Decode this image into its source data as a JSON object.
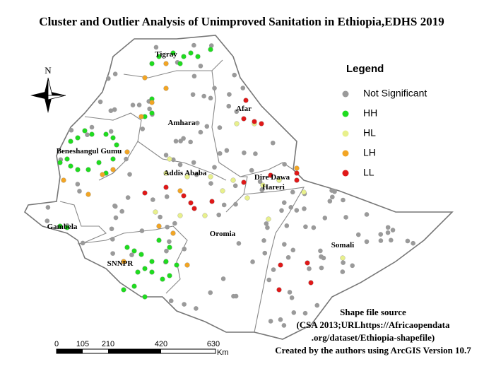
{
  "title": "Cluster and Outlier Analysis of  Unimproved Sanitation in Ethiopia,EDHS 2019",
  "north": "N",
  "legend": {
    "title": "Legend",
    "items": [
      "Not Significant",
      "HH",
      "HL",
      "LH",
      "LL"
    ]
  },
  "regions": [
    "Tigray",
    "Afar",
    "Amhara",
    "Beneshangul Gumu",
    "Dire Dawa",
    "Hareri",
    "Addis Ababa",
    "Gambela",
    "Oromia",
    "SNNPR",
    "Somali"
  ],
  "scale_bar": {
    "labels": [
      "0",
      "105",
      "210",
      "420",
      "630"
    ],
    "unit": "Km"
  },
  "source": [
    "Shape file source",
    "(CSA 2013;URLhttps://Africaopendata",
    ".org/dataset/Ethiopia-shapefile)",
    "Created by the authors using ArcGIS Version 10.7"
  ]
}
